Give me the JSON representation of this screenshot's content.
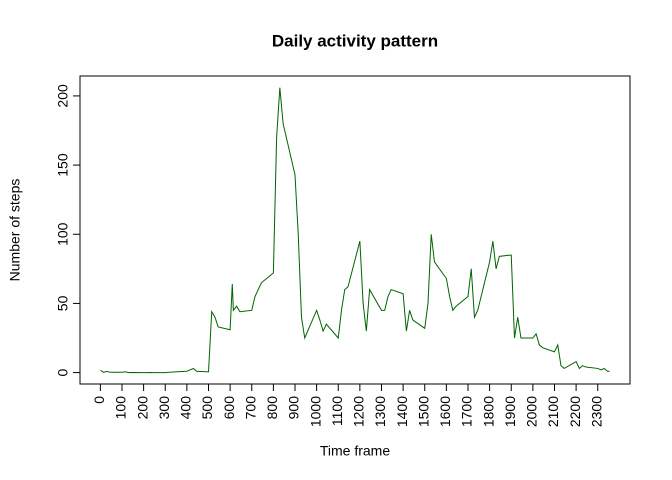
{
  "chart_data": {
    "type": "line",
    "title": "Daily activity pattern",
    "x_label": "Time frame",
    "y_label": "Number of steps",
    "x": [
      0,
      15,
      30,
      45,
      100,
      115,
      130,
      145,
      200,
      215,
      230,
      245,
      300,
      315,
      330,
      345,
      400,
      415,
      430,
      445,
      500,
      515,
      530,
      545,
      600,
      610,
      615,
      630,
      645,
      700,
      715,
      730,
      745,
      800,
      815,
      830,
      845,
      900,
      915,
      930,
      945,
      1000,
      1015,
      1030,
      1045,
      1100,
      1115,
      1130,
      1145,
      1200,
      1215,
      1230,
      1245,
      1300,
      1315,
      1330,
      1345,
      1400,
      1415,
      1430,
      1445,
      1500,
      1515,
      1530,
      1545,
      1600,
      1615,
      1630,
      1645,
      1700,
      1715,
      1730,
      1745,
      1800,
      1815,
      1830,
      1845,
      1900,
      1915,
      1930,
      1945,
      2000,
      2015,
      2030,
      2045,
      2100,
      2115,
      2130,
      2145,
      2200,
      2215,
      2230,
      2245,
      2300,
      2315,
      2330,
      2345,
      2355
    ],
    "series": [
      {
        "name": "steps",
        "color": "#006400",
        "values": [
          1.7,
          0.2,
          0.9,
          0.2,
          0.2,
          0.6,
          0,
          0.1,
          0,
          0,
          0.1,
          0,
          0,
          0.2,
          0.3,
          0.5,
          1,
          2,
          3,
          1,
          0.5,
          44,
          40,
          33,
          31,
          64,
          45,
          48,
          44,
          45,
          55,
          60,
          65,
          72,
          170,
          206,
          180,
          143,
          100,
          40,
          25,
          45,
          38,
          30,
          35,
          25,
          45,
          60,
          62,
          95,
          50,
          30,
          60,
          45,
          45,
          55,
          60,
          57,
          30,
          45,
          38,
          32,
          50,
          100,
          80,
          68,
          55,
          45,
          48,
          55,
          75,
          40,
          45,
          80,
          95,
          75,
          84,
          85,
          25,
          40,
          25,
          25,
          28,
          20,
          18,
          15,
          20,
          5,
          3,
          8,
          3,
          5,
          4,
          3,
          2,
          3,
          1,
          1
        ]
      }
    ],
    "xlim": [
      -94.2,
      2449.2
    ],
    "ylim": [
      -8.25,
      214.4
    ],
    "xticks": [
      0,
      100,
      200,
      300,
      400,
      500,
      600,
      700,
      800,
      900,
      1000,
      1100,
      1200,
      1300,
      1400,
      1500,
      1600,
      1700,
      1800,
      1900,
      2000,
      2100,
      2200,
      2300
    ],
    "yticks": [
      0,
      50,
      100,
      150,
      200
    ]
  }
}
